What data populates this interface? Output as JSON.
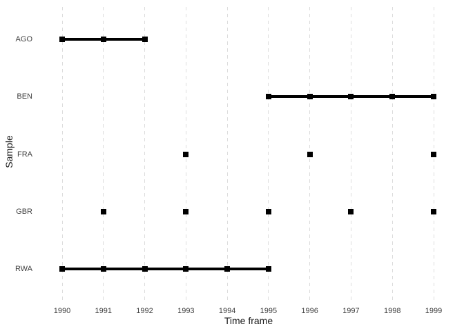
{
  "chart_data": {
    "type": "scatter",
    "subtype": "timeline-range-plot",
    "title": "",
    "xlabel": "Time frame",
    "ylabel": "Sample",
    "categories": [
      "AGO",
      "BEN",
      "FRA",
      "GBR",
      "RWA"
    ],
    "x_ticks": [
      1990,
      1991,
      1992,
      1993,
      1994,
      1995,
      1996,
      1997,
      1998,
      1999
    ],
    "xlim": [
      1990,
      1999
    ],
    "marker": "filled-square",
    "series": [
      {
        "name": "AGO",
        "points": [
          1990,
          1991,
          1992
        ],
        "segments": [
          [
            1990,
            1992
          ]
        ]
      },
      {
        "name": "BEN",
        "points": [
          1995,
          1996,
          1997,
          1998,
          1999
        ],
        "segments": [
          [
            1995,
            1999
          ]
        ]
      },
      {
        "name": "FRA",
        "points": [
          1993,
          1996,
          1999
        ],
        "segments": []
      },
      {
        "name": "GBR",
        "points": [
          1991,
          1993,
          1995,
          1997,
          1999
        ],
        "segments": []
      },
      {
        "name": "RWA",
        "points": [
          1990,
          1991,
          1992,
          1993,
          1994,
          1995
        ],
        "segments": [
          [
            1990,
            1995
          ]
        ]
      }
    ],
    "grid": {
      "vertical": true,
      "horizontal": false,
      "style": "dashed"
    },
    "legend_position": "none",
    "colors": {
      "point": "#000000",
      "segment": "#000000",
      "gridline": "#dcdcdc",
      "tick_text": "#404040",
      "axis_title_text": "#1a1a1a",
      "background": "#ffffff"
    }
  }
}
